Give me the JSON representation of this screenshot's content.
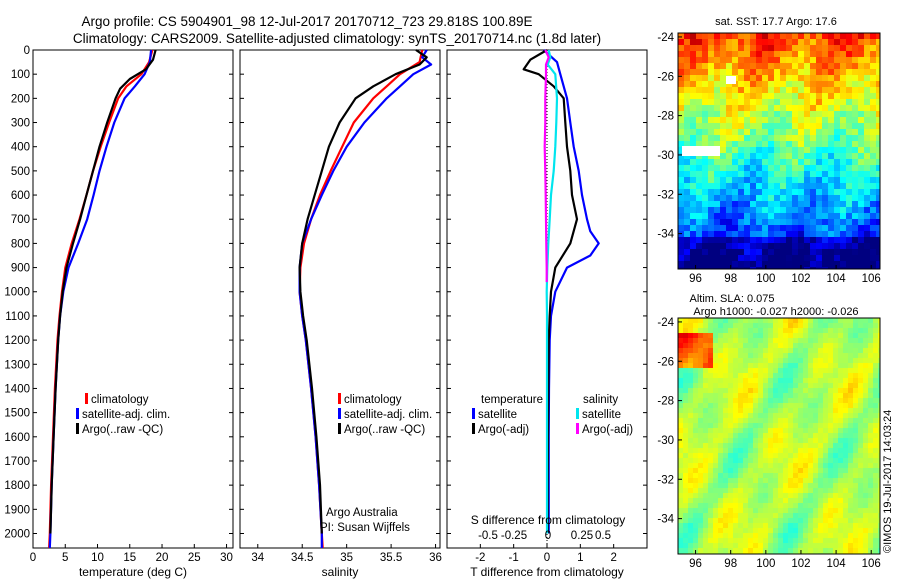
{
  "titles": {
    "line1": "Argo profile: CS 5904901_98 12-Jul-2017 20170712_723 29.818S 100.89E",
    "line2": "Climatology: CARS2009. Satellite-adjusted climatology: synTS_20170714.nc (1.8d later)"
  },
  "colors": {
    "climatology": "#ff0000",
    "satellite": "#0000ff",
    "argo": "#000000",
    "salinity_satellite": "#00e5ee",
    "salinity_argo": "#ff00ff"
  },
  "chart_data": [
    {
      "type": "line",
      "panel": "temperature",
      "xlabel": "temperature (deg C)",
      "xlim": [
        0,
        31
      ],
      "xticks": [
        0,
        5,
        10,
        15,
        20,
        25,
        30
      ],
      "ylim": [
        2060,
        0
      ],
      "yticks": [
        0,
        100,
        200,
        300,
        400,
        500,
        600,
        700,
        800,
        900,
        1000,
        1100,
        1200,
        1300,
        1400,
        1500,
        1600,
        1700,
        1800,
        1900,
        2000
      ],
      "legend": [
        "climatology",
        "satellite-adj. clim.",
        "Argo(..raw -QC)"
      ],
      "series": [
        {
          "name": "climatology",
          "color": "#ff0000",
          "depth": [
            0,
            50,
            100,
            150,
            200,
            300,
            400,
            500,
            600,
            700,
            800,
            900,
            1000,
            1100,
            1200,
            1400,
            1600,
            1800,
            2000,
            2060
          ],
          "values": [
            18.5,
            18.0,
            16.8,
            14.5,
            13.2,
            11.8,
            10.5,
            9.3,
            8.3,
            7.2,
            6.0,
            5.0,
            4.5,
            4.1,
            3.8,
            3.4,
            3.1,
            2.8,
            2.6,
            2.5
          ]
        },
        {
          "name": "satellite-adj. clim.",
          "color": "#0000ff",
          "depth": [
            0,
            50,
            100,
            150,
            200,
            300,
            400,
            500,
            600,
            700,
            800,
            900,
            1000,
            1100,
            1200,
            1400,
            1600,
            1800,
            2000,
            2060
          ],
          "values": [
            18.3,
            18.1,
            17.3,
            15.8,
            14.2,
            12.6,
            11.4,
            10.3,
            9.4,
            8.4,
            7.0,
            5.5,
            4.7,
            4.2,
            3.9,
            3.5,
            3.2,
            2.9,
            2.7,
            2.6
          ]
        },
        {
          "name": "Argo(..raw -QC)",
          "color": "#000000",
          "depth": [
            0,
            40,
            80,
            120,
            160,
            200,
            300,
            400,
            500,
            600,
            700,
            800,
            900,
            1000,
            1100,
            1200,
            1400,
            1600,
            1800,
            2000
          ],
          "values": [
            19.0,
            18.6,
            17.5,
            15.0,
            13.5,
            12.8,
            11.5,
            10.3,
            9.3,
            8.3,
            7.3,
            6.2,
            5.2,
            4.6,
            4.2,
            3.9,
            3.5,
            3.2,
            2.9,
            2.7
          ]
        }
      ]
    },
    {
      "type": "line",
      "panel": "salinity",
      "xlabel": "salinity",
      "xlim": [
        33.8,
        36.05
      ],
      "xticks": [
        34,
        34.5,
        35,
        35.5,
        36
      ],
      "ylim": [
        2060,
        0
      ],
      "legend": [
        "climatology",
        "satellite-adj. clim.",
        "Argo(..raw -QC)"
      ],
      "annotation": [
        "Argo Australia",
        "PI: Susan Wijffels"
      ],
      "series": [
        {
          "name": "climatology",
          "color": "#ff0000",
          "depth": [
            0,
            50,
            100,
            150,
            200,
            300,
            400,
            500,
            600,
            700,
            800,
            900,
            1000,
            1100,
            1200,
            1400,
            1600,
            1800,
            2000,
            2060
          ],
          "values": [
            35.85,
            35.82,
            35.6,
            35.45,
            35.3,
            35.08,
            34.95,
            34.82,
            34.7,
            34.6,
            34.52,
            34.48,
            34.47,
            34.5,
            34.54,
            34.6,
            34.65,
            34.69,
            34.72,
            34.73
          ]
        },
        {
          "name": "satellite-adj. clim.",
          "color": "#0000ff",
          "depth": [
            0,
            30,
            60,
            100,
            150,
            200,
            300,
            400,
            500,
            600,
            700,
            800,
            900,
            1000,
            1100,
            1200,
            1400,
            1600,
            1800,
            2000,
            2060
          ],
          "values": [
            35.9,
            35.85,
            35.95,
            35.75,
            35.6,
            35.45,
            35.2,
            35.0,
            34.85,
            34.72,
            34.6,
            34.5,
            34.47,
            34.47,
            34.5,
            34.54,
            34.6,
            34.65,
            34.69,
            34.72,
            34.72
          ]
        },
        {
          "name": "Argo(..raw -QC)",
          "color": "#000000",
          "depth": [
            0,
            30,
            60,
            100,
            150,
            200,
            300,
            400,
            500,
            600,
            700,
            800,
            900,
            1000,
            1100,
            1200,
            1400,
            1600,
            1800,
            2000
          ],
          "values": [
            35.78,
            35.9,
            35.82,
            35.55,
            35.3,
            35.1,
            34.92,
            34.8,
            34.72,
            34.64,
            34.56,
            34.5,
            34.47,
            34.48,
            34.51,
            34.55,
            34.61,
            34.66,
            34.7,
            34.72
          ]
        }
      ]
    },
    {
      "type": "line",
      "panel": "differences",
      "xlabel": "T difference from climatology",
      "xlim": [
        -3,
        3
      ],
      "xticks": [
        -2,
        -1,
        0,
        1,
        2
      ],
      "s_xlabel": "S difference from climatology",
      "s_xticks": [
        "-0.5",
        "-0.25",
        "0",
        "0.25",
        "0.5"
      ],
      "ylim": [
        2060,
        0
      ],
      "legend": {
        "temperature_header": "temperature",
        "salinity_header": "salinity",
        "temperature": [
          "satellite",
          "Argo(-adj)"
        ],
        "salinity": [
          "satellite",
          "Argo(-adj)"
        ]
      },
      "series": [
        {
          "name": "satellite",
          "color": "#0000ff",
          "depth": [
            0,
            50,
            100,
            200,
            300,
            400,
            500,
            600,
            700,
            750,
            800,
            850,
            900,
            1000,
            1100,
            1200,
            1400,
            1600,
            1800,
            2000
          ],
          "values": [
            -0.1,
            0.3,
            0.4,
            0.6,
            0.7,
            0.8,
            0.95,
            1.05,
            1.2,
            1.3,
            1.55,
            1.3,
            0.6,
            0.25,
            0.12,
            0.08,
            0.06,
            0.05,
            0.05,
            0.05
          ]
        },
        {
          "name": "Argo(-adj)",
          "color": "#000000",
          "depth": [
            0,
            40,
            80,
            100,
            150,
            200,
            300,
            400,
            500,
            600,
            700,
            800,
            900,
            1000,
            1100,
            1200,
            1400,
            1600,
            1800,
            2000
          ],
          "values": [
            0.0,
            -0.5,
            -0.7,
            -0.25,
            0.2,
            0.5,
            0.55,
            0.6,
            0.7,
            0.75,
            0.9,
            0.7,
            0.25,
            0.12,
            0.08,
            0.05,
            0.04,
            0.03,
            0.02,
            0.02
          ]
        },
        {
          "name": "satellite (salinity)",
          "color": "#00e5ee",
          "depth": [
            0,
            30,
            60,
            100,
            200,
            300,
            400,
            500,
            600,
            700,
            800,
            900,
            1000,
            1100,
            1200,
            1400,
            1600,
            1800,
            2000
          ],
          "values": [
            0.05,
            0.1,
            0.02,
            0.25,
            0.3,
            0.28,
            0.25,
            0.2,
            0.12,
            0.08,
            0.04,
            0.01,
            -0.01,
            0.0,
            0.0,
            0.0,
            0.0,
            0.0,
            0.0
          ]
        },
        {
          "name": "Argo(-adj) (salinity)",
          "color": "#ff00ff",
          "depth": [
            0,
            30,
            60,
            100,
            200,
            300,
            400,
            500,
            600,
            700,
            800,
            900,
            960
          ],
          "values": [
            -0.05,
            0.05,
            -0.03,
            -0.03,
            -0.05,
            -0.05,
            -0.07,
            -0.05,
            -0.04,
            -0.03,
            -0.02,
            -0.01,
            -0.01
          ]
        }
      ]
    },
    {
      "type": "heatmap",
      "panel": "sst_map",
      "title": "sat. SST: 17.7  Argo: 17.6",
      "xticks": [
        96,
        98,
        100,
        102,
        104,
        106
      ],
      "yticks": [
        -24,
        -26,
        -28,
        -30,
        -32,
        -34
      ],
      "xlim": [
        95,
        106.5
      ],
      "ylim": [
        -35.8,
        -23.8
      ]
    },
    {
      "type": "heatmap",
      "panel": "sla_map",
      "title_lines": [
        "Altim. SLA: 0.075",
        "Argo h1000: -0.027 h2000: -0.026"
      ],
      "xticks": [
        96,
        98,
        100,
        102,
        104,
        106
      ],
      "yticks": [
        -24,
        -26,
        -28,
        -30,
        -32,
        -34
      ],
      "xlim": [
        95,
        106.5
      ],
      "ylim": [
        -35.8,
        -23.8
      ]
    }
  ],
  "credit": "©IMOS 19-Jul-2017 14:03:24"
}
